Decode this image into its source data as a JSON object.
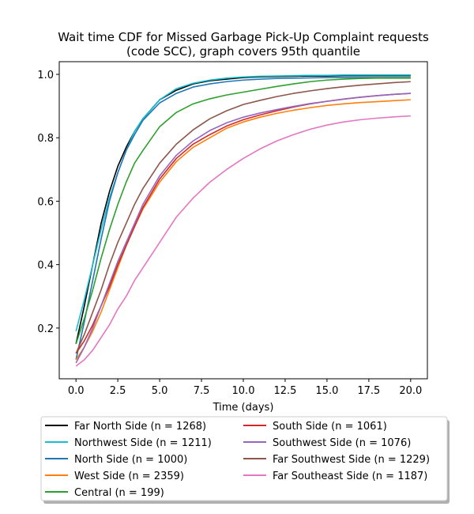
{
  "chart_data": {
    "type": "line",
    "title_lines": [
      "Wait time CDF for Missed Garbage Pick-Up Complaint  requests",
      "(code SCC), graph covers 95th quantile"
    ],
    "xlabel": "Time (days)",
    "ylabel": "",
    "xlim": [
      -1,
      21
    ],
    "ylim": [
      0.04,
      1.04
    ],
    "x_ticks": [
      0.0,
      2.5,
      5.0,
      7.5,
      10.0,
      12.5,
      15.0,
      17.5,
      20.0
    ],
    "x_tick_labels": [
      "0.0",
      "2.5",
      "5.0",
      "7.5",
      "10.0",
      "12.5",
      "15.0",
      "17.5",
      "20.0"
    ],
    "y_ticks": [
      0.2,
      0.4,
      0.6,
      0.8,
      1.0
    ],
    "y_tick_labels": [
      "0.2",
      "0.4",
      "0.6",
      "0.8",
      "1.0"
    ],
    "grid": false,
    "legend_placement": "below plot, two columns",
    "x": [
      0,
      0.5,
      1,
      1.5,
      2,
      2.5,
      3,
      3.5,
      4,
      5,
      6,
      7,
      8,
      9,
      10,
      11,
      12,
      13,
      14,
      15,
      16,
      17,
      18,
      19,
      20
    ],
    "series": [
      {
        "name": "Far North Side (n = 1268)",
        "color": "#000000",
        "values": [
          0.15,
          0.27,
          0.4,
          0.53,
          0.63,
          0.71,
          0.77,
          0.82,
          0.86,
          0.92,
          0.95,
          0.97,
          0.98,
          0.985,
          0.99,
          0.992,
          0.993,
          0.994,
          0.995,
          0.995,
          0.996,
          0.996,
          0.996,
          0.996,
          0.996
        ]
      },
      {
        "name": "Northwest Side (n = 1211)",
        "color": "#17becf",
        "values": [
          0.19,
          0.29,
          0.4,
          0.51,
          0.61,
          0.69,
          0.76,
          0.82,
          0.86,
          0.92,
          0.955,
          0.972,
          0.982,
          0.988,
          0.992,
          0.994,
          0.995,
          0.996,
          0.997,
          0.997,
          0.998,
          0.998,
          0.998,
          0.998,
          0.998
        ]
      },
      {
        "name": "North Side (n = 1000)",
        "color": "#1f77b4",
        "values": [
          0.1,
          0.22,
          0.35,
          0.48,
          0.6,
          0.69,
          0.76,
          0.81,
          0.855,
          0.91,
          0.94,
          0.96,
          0.97,
          0.977,
          0.982,
          0.985,
          0.987,
          0.988,
          0.989,
          0.99,
          0.99,
          0.99,
          0.99,
          0.99,
          0.99
        ]
      },
      {
        "name": "West Side (n = 2359)",
        "color": "#ff7f0e",
        "values": [
          0.1,
          0.14,
          0.19,
          0.25,
          0.32,
          0.39,
          0.46,
          0.52,
          0.575,
          0.66,
          0.725,
          0.77,
          0.8,
          0.83,
          0.85,
          0.865,
          0.877,
          0.887,
          0.895,
          0.902,
          0.907,
          0.911,
          0.914,
          0.917,
          0.92
        ]
      },
      {
        "name": "Central (n = 199)",
        "color": "#2ca02c",
        "values": [
          0.15,
          0.23,
          0.32,
          0.42,
          0.51,
          0.59,
          0.66,
          0.72,
          0.76,
          0.835,
          0.88,
          0.907,
          0.923,
          0.935,
          0.944,
          0.953,
          0.962,
          0.97,
          0.977,
          0.982,
          0.985,
          0.987,
          0.988,
          0.988,
          0.988
        ]
      },
      {
        "name": "South Side (n = 1061)",
        "color": "#d62728",
        "values": [
          0.12,
          0.16,
          0.21,
          0.27,
          0.33,
          0.4,
          0.46,
          0.52,
          0.58,
          0.67,
          0.735,
          0.78,
          0.81,
          0.837,
          0.857,
          0.872,
          0.885,
          0.897,
          0.907,
          0.915,
          0.922,
          0.928,
          0.933,
          0.937,
          0.94
        ]
      },
      {
        "name": "Southwest Side (n = 1076)",
        "color": "#9467bd",
        "values": [
          0.09,
          0.14,
          0.2,
          0.27,
          0.34,
          0.41,
          0.47,
          0.53,
          0.59,
          0.68,
          0.745,
          0.79,
          0.823,
          0.847,
          0.865,
          0.878,
          0.889,
          0.899,
          0.908,
          0.915,
          0.922,
          0.928,
          0.933,
          0.937,
          0.94
        ]
      },
      {
        "name": "Far Southwest Side (n = 1229)",
        "color": "#8c564b",
        "values": [
          0.12,
          0.18,
          0.25,
          0.32,
          0.4,
          0.47,
          0.53,
          0.59,
          0.64,
          0.72,
          0.78,
          0.825,
          0.86,
          0.885,
          0.905,
          0.918,
          0.93,
          0.94,
          0.948,
          0.955,
          0.961,
          0.966,
          0.97,
          0.974,
          0.977
        ]
      },
      {
        "name": "Far Southeast Side (n = 1187)",
        "color": "#e377c2",
        "values": [
          0.08,
          0.1,
          0.13,
          0.17,
          0.21,
          0.26,
          0.3,
          0.35,
          0.39,
          0.47,
          0.55,
          0.61,
          0.66,
          0.7,
          0.735,
          0.765,
          0.79,
          0.81,
          0.827,
          0.84,
          0.85,
          0.857,
          0.862,
          0.866,
          0.869
        ]
      }
    ]
  }
}
